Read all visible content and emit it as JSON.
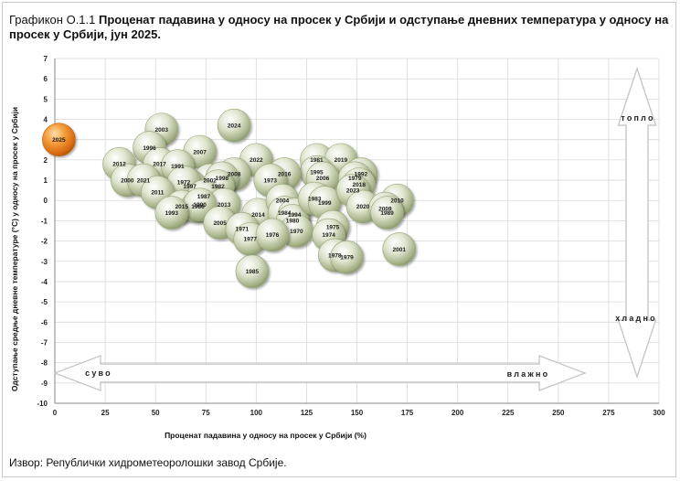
{
  "title": {
    "prefix": "Графикон О.1.1 ",
    "main": "Проценат падавина у односу на просек у Србији и одступање дневних температура у односу на просек у Србији, јун 2025."
  },
  "source": "Извор: Републички хидрометеоролошки завод Србије.",
  "chart_data": {
    "type": "scatter",
    "title": "Проценат падавина у односу на просек у Србији и одступање дневних температура у односу на просек у Србији, јун 2025.",
    "xlabel": "Проценат падавина у односу на просек у Србији (%)",
    "ylabel": "Одступање средње дневне температуре (°C) у односу на просек у Србији",
    "xlim": [
      0,
      300
    ],
    "ylim": [
      -10,
      7
    ],
    "x_ticks": [
      0,
      25,
      50,
      75,
      100,
      125,
      150,
      175,
      200,
      225,
      250,
      275,
      300
    ],
    "y_ticks": [
      7,
      6,
      5,
      4,
      3,
      2,
      1,
      0,
      -1,
      -2,
      -3,
      -4,
      -5,
      -6,
      -7,
      -8,
      -9,
      -10
    ],
    "grid": true,
    "highlight_color": "#e8761a",
    "point_color": "#b9c79c",
    "annotations": {
      "warm": "топло",
      "cold": "хладно",
      "dry": "суво",
      "wet": "влажно"
    },
    "points": [
      {
        "label": "2025",
        "x": 2,
        "y": 3.0,
        "highlight": true
      },
      {
        "label": "2003",
        "x": 53,
        "y": 3.5
      },
      {
        "label": "2024",
        "x": 89,
        "y": 3.7
      },
      {
        "label": "1996",
        "x": 47,
        "y": 2.6
      },
      {
        "label": "2007",
        "x": 72,
        "y": 2.4
      },
      {
        "label": "2012",
        "x": 32,
        "y": 1.8
      },
      {
        "label": "2017",
        "x": 52,
        "y": 1.8
      },
      {
        "label": "1991",
        "x": 61,
        "y": 1.7
      },
      {
        "label": "2022",
        "x": 100,
        "y": 2.0
      },
      {
        "label": "1981",
        "x": 130,
        "y": 2.0
      },
      {
        "label": "2019",
        "x": 142,
        "y": 2.0
      },
      {
        "label": "1995",
        "x": 130,
        "y": 1.4
      },
      {
        "label": "2006",
        "x": 133,
        "y": 1.1
      },
      {
        "label": "2016",
        "x": 114,
        "y": 1.3
      },
      {
        "label": "1973",
        "x": 107,
        "y": 1.0
      },
      {
        "label": "2008",
        "x": 89,
        "y": 1.3
      },
      {
        "label": "2002",
        "x": 77,
        "y": 1.0
      },
      {
        "label": "1998",
        "x": 83,
        "y": 1.1
      },
      {
        "label": "1982",
        "x": 81,
        "y": 0.7
      },
      {
        "label": "1997",
        "x": 67,
        "y": 0.7
      },
      {
        "label": "1972",
        "x": 64,
        "y": 0.9
      },
      {
        "label": "2000",
        "x": 36,
        "y": 1.0
      },
      {
        "label": "2021",
        "x": 44,
        "y": 1.0
      },
      {
        "label": "2011",
        "x": 51,
        "y": 0.4
      },
      {
        "label": "1987",
        "x": 74,
        "y": 0.2
      },
      {
        "label": "2013",
        "x": 84,
        "y": -0.2
      },
      {
        "label": "2015",
        "x": 63,
        "y": -0.3
      },
      {
        "label": "1986",
        "x": 71,
        "y": -0.3
      },
      {
        "label": "1990",
        "x": 72,
        "y": -0.2
      },
      {
        "label": "1993",
        "x": 58,
        "y": -0.6
      },
      {
        "label": "2005",
        "x": 82,
        "y": -1.1
      },
      {
        "label": "2014",
        "x": 101,
        "y": -0.7
      },
      {
        "label": "2004",
        "x": 113,
        "y": 0.0
      },
      {
        "label": "1984",
        "x": 114,
        "y": -0.6
      },
      {
        "label": "1994",
        "x": 119,
        "y": -0.7
      },
      {
        "label": "1980",
        "x": 118,
        "y": -1.0
      },
      {
        "label": "1970",
        "x": 120,
        "y": -1.5
      },
      {
        "label": "1971",
        "x": 93,
        "y": -1.4
      },
      {
        "label": "1977",
        "x": 97,
        "y": -1.9
      },
      {
        "label": "1976",
        "x": 108,
        "y": -1.7
      },
      {
        "label": "1983",
        "x": 129,
        "y": 0.1
      },
      {
        "label": "1999",
        "x": 134,
        "y": -0.1
      },
      {
        "label": "1992",
        "x": 152,
        "y": 1.3
      },
      {
        "label": "1979",
        "x": 149,
        "y": 1.1
      },
      {
        "label": "2018",
        "x": 151,
        "y": 0.8
      },
      {
        "label": "2023",
        "x": 148,
        "y": 0.5
      },
      {
        "label": "2020",
        "x": 153,
        "y": -0.3
      },
      {
        "label": "2010",
        "x": 170,
        "y": 0.0
      },
      {
        "label": "2009",
        "x": 164,
        "y": -0.4
      },
      {
        "label": "1989",
        "x": 165,
        "y": -0.6
      },
      {
        "label": "1975",
        "x": 138,
        "y": -1.3
      },
      {
        "label": "1974",
        "x": 136,
        "y": -1.7
      },
      {
        "label": "1978",
        "x": 139,
        "y": -2.7
      },
      {
        "label": "1979",
        "x": 145,
        "y": -2.8
      },
      {
        "label": "2001",
        "x": 171,
        "y": -2.4
      },
      {
        "label": "1985",
        "x": 98,
        "y": -3.5
      }
    ]
  }
}
